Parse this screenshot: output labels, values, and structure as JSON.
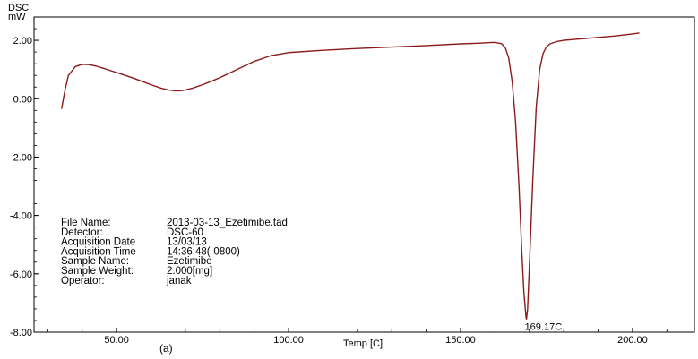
{
  "chart_data": {
    "type": "line",
    "ylabel_top": "DSC",
    "ylabel_unit": "mW",
    "xlabel": "Temp [C]",
    "xlim": [
      26,
      218
    ],
    "ylim": [
      -8.0,
      2.8
    ],
    "x_ticks": [
      50,
      100,
      150,
      200
    ],
    "x_tick_labels": [
      "50.00",
      "100.00",
      "150.00",
      "200.00"
    ],
    "y_ticks": [
      2,
      0,
      -2,
      -4,
      -6,
      -8
    ],
    "y_tick_labels": [
      "2.00",
      "0.00",
      "-2.00",
      "-4.00",
      "-6.00",
      "-8.00"
    ],
    "grid": false,
    "line_color": "#8b1a1a",
    "series": [
      {
        "x": [
          34.0,
          35.0,
          36.0,
          38.0,
          40.0,
          42.0,
          44.0,
          46.0,
          48.0,
          50.0,
          52.0,
          55.0,
          58.0,
          60.0,
          63.0,
          65.0,
          67.0,
          68.5,
          70.0,
          72.0,
          75.0,
          78.0,
          80.0,
          85.0,
          90.0,
          95.0,
          100.0,
          110.0,
          120.0,
          130.0,
          140.0,
          150.0,
          155.0,
          158.0,
          160.0,
          162.0,
          163.0,
          164.0,
          165.0,
          166.0,
          167.0,
          167.8,
          168.4,
          169.0,
          169.17,
          169.5,
          170.0,
          171.0,
          172.0,
          173.0,
          174.0,
          175.0,
          176.0,
          178.0,
          180.0,
          185.0,
          190.0,
          195.0,
          200.0,
          202.0
        ],
        "y": [
          -0.35,
          0.3,
          0.8,
          1.1,
          1.18,
          1.17,
          1.12,
          1.05,
          0.97,
          0.9,
          0.82,
          0.7,
          0.57,
          0.48,
          0.36,
          0.3,
          0.27,
          0.27,
          0.3,
          0.36,
          0.48,
          0.62,
          0.72,
          1.0,
          1.28,
          1.48,
          1.58,
          1.66,
          1.72,
          1.77,
          1.82,
          1.88,
          1.9,
          1.92,
          1.93,
          1.88,
          1.75,
          1.4,
          0.6,
          -0.8,
          -3.0,
          -5.2,
          -6.6,
          -7.45,
          -7.55,
          -7.2,
          -5.8,
          -2.8,
          -0.3,
          1.0,
          1.55,
          1.78,
          1.88,
          1.96,
          2.0,
          2.05,
          2.1,
          2.15,
          2.22,
          2.25
        ]
      }
    ],
    "annotations": [
      {
        "text": "169.17C",
        "x": 169.17,
        "y": -7.55
      }
    ]
  },
  "info": {
    "labels": [
      "File Name:",
      "Detector:",
      "Acquisition Date",
      "Acquisition Time",
      "Sample Name:",
      "Sample Weight:",
      "Operator:"
    ],
    "values": [
      "2013-03-13_Ezetimibe.tad",
      "DSC-60",
      "13/03/13",
      "14:36:48(-0800)",
      "Ezetimibe",
      "2.000[mg]",
      "janak"
    ]
  },
  "caption": "(a)"
}
